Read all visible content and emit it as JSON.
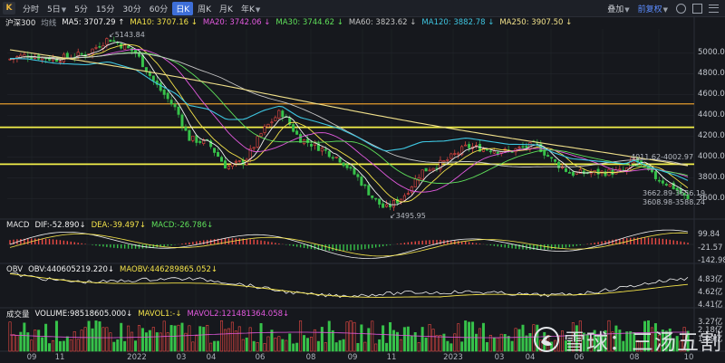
{
  "toolbar": {
    "logo_icon": "chart-icon",
    "periods": [
      {
        "label": "分时",
        "active": false
      },
      {
        "label": "5日",
        "active": false,
        "caret": true
      },
      {
        "label": "5分",
        "active": false
      },
      {
        "label": "15分",
        "active": false
      },
      {
        "label": "30分",
        "active": false
      },
      {
        "label": "60分",
        "active": false
      },
      {
        "label": "日K",
        "active": true
      },
      {
        "label": "周K",
        "active": false
      },
      {
        "label": "月K",
        "active": false
      },
      {
        "label": "年K",
        "active": false,
        "caret": true
      }
    ],
    "overlay_label": "叠加",
    "adjust_label": "前复权",
    "icons": [
      "settings-icon",
      "fullscreen-icon",
      "menu-icon"
    ]
  },
  "legend": {
    "name": "沪深300",
    "avg_label": "均线",
    "items": [
      {
        "text": "MA5: 3707.29 ↑",
        "color": "#f2f2f2"
      },
      {
        "text": "MA10: 3707.16 ↓",
        "color": "#f5e44a"
      },
      {
        "text": "MA20: 3742.06 ↓",
        "color": "#e45ae0"
      },
      {
        "text": "MA30: 3744.62 ↓",
        "color": "#5fe05a"
      },
      {
        "text": "MA60: 3823.62 ↓",
        "color": "#c6c6c6"
      },
      {
        "text": "MA120: 3882.78 ↓",
        "color": "#3ec5e0"
      },
      {
        "text": "MA250: 3907.50 ↓",
        "color": "#f0e08a"
      }
    ]
  },
  "price_axis": {
    "ticks": [
      "5000.00",
      "4800.00",
      "4600.00",
      "4400.00",
      "4200.00",
      "4000.00",
      "3800.00",
      "3600.00"
    ],
    "values": [
      5000,
      4800,
      4600,
      4400,
      4200,
      4000,
      3800,
      3600
    ],
    "range": [
      3420,
      5230
    ]
  },
  "annotations": {
    "high": "5143.84",
    "low": "3495.95",
    "zone_high": "4011.62-4002.97",
    "zone_mid": "3662.89-3656.19",
    "zone_low": "3608.98-3588.24"
  },
  "horizontal_lines": [
    {
      "price": 4510,
      "color": "#e39a2c"
    },
    {
      "price": 4285,
      "color": "#f3f04a"
    },
    {
      "price": 3930,
      "color": "#f3f04a"
    }
  ],
  "macd": {
    "labels": [
      {
        "text": "MACD",
        "color": "#e6e6e6"
      },
      {
        "text": "DIF:-52.890↓",
        "color": "#f2f2f2"
      },
      {
        "text": "DEA:-39.497↓",
        "color": "#f5e44a"
      },
      {
        "text": "MACD:-26.786↓",
        "color": "#5fe05a"
      }
    ],
    "axis": [
      "99.84",
      "-21.57",
      "-142.98"
    ]
  },
  "obv": {
    "labels": [
      {
        "text": "OBV",
        "color": "#e6e6e6"
      },
      {
        "text": "OBV:440605219.220↓",
        "color": "#f2f2f2"
      },
      {
        "text": "MAOBV:446289865.052↓",
        "color": "#f5e44a"
      }
    ],
    "axis": [
      "4.83亿",
      "4.62亿",
      "4.41亿"
    ]
  },
  "volume": {
    "labels": [
      {
        "text": "成交量",
        "color": "#e6e6e6"
      },
      {
        "text": "VOLUME:98518605.000↓",
        "color": "#f2f2f2"
      },
      {
        "text": "MAVOL1:-↓",
        "color": "#f5e44a"
      },
      {
        "text": "MAVOL2:121481364.058↓",
        "color": "#e45ae0"
      }
    ],
    "axis": [
      "3.27亿",
      "2.18亿",
      "1.09亿"
    ]
  },
  "x_axis": [
    "09",
    "11",
    "2022",
    "03",
    "04",
    "06",
    "08",
    "09",
    "11",
    "2023",
    "03",
    "04",
    "06",
    "08",
    "10"
  ],
  "watermark": {
    "icon": "snowball-logo-icon",
    "text": "雪球：三汤五割"
  }
}
